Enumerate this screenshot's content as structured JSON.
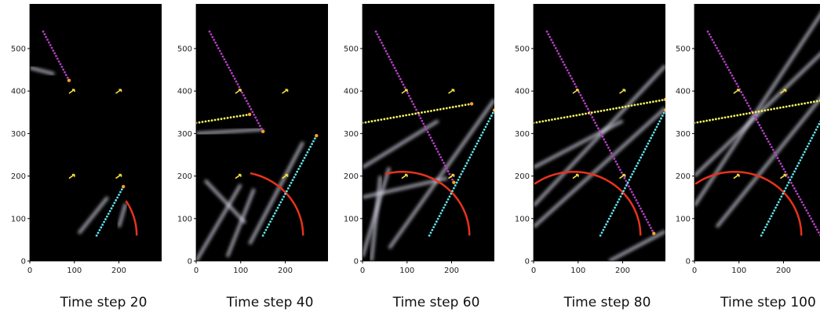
{
  "chart_data": [
    {
      "type": "image",
      "title": "Time step 20",
      "xlim": [
        0,
        296
      ],
      "ylim": [
        0,
        605
      ],
      "xticks": [
        0,
        100,
        200
      ],
      "yticks": [
        0,
        100,
        200,
        300,
        400,
        500
      ]
    },
    {
      "type": "image",
      "title": "Time step 40",
      "xlim": [
        0,
        296
      ],
      "ylim": [
        0,
        605
      ],
      "xticks": [
        0,
        100,
        200
      ],
      "yticks": [
        0,
        100,
        200,
        300,
        400,
        500
      ]
    },
    {
      "type": "image",
      "title": "Time step 60",
      "xlim": [
        0,
        296
      ],
      "ylim": [
        0,
        605
      ],
      "xticks": [
        0,
        100,
        200
      ],
      "yticks": [
        0,
        100,
        200,
        300,
        400,
        500
      ]
    },
    {
      "type": "image",
      "title": "Time step 80",
      "xlim": [
        0,
        296
      ],
      "ylim": [
        0,
        605
      ],
      "xticks": [
        0,
        100,
        200
      ],
      "yticks": [
        0,
        100,
        200,
        300,
        400,
        500
      ]
    },
    {
      "type": "image",
      "title": "Time step 100",
      "xlim": [
        0,
        296
      ],
      "ylim": [
        0,
        605
      ],
      "xticks": [
        0,
        100,
        200
      ],
      "yticks": [
        0,
        100,
        200,
        300,
        400,
        500
      ]
    }
  ]
}
